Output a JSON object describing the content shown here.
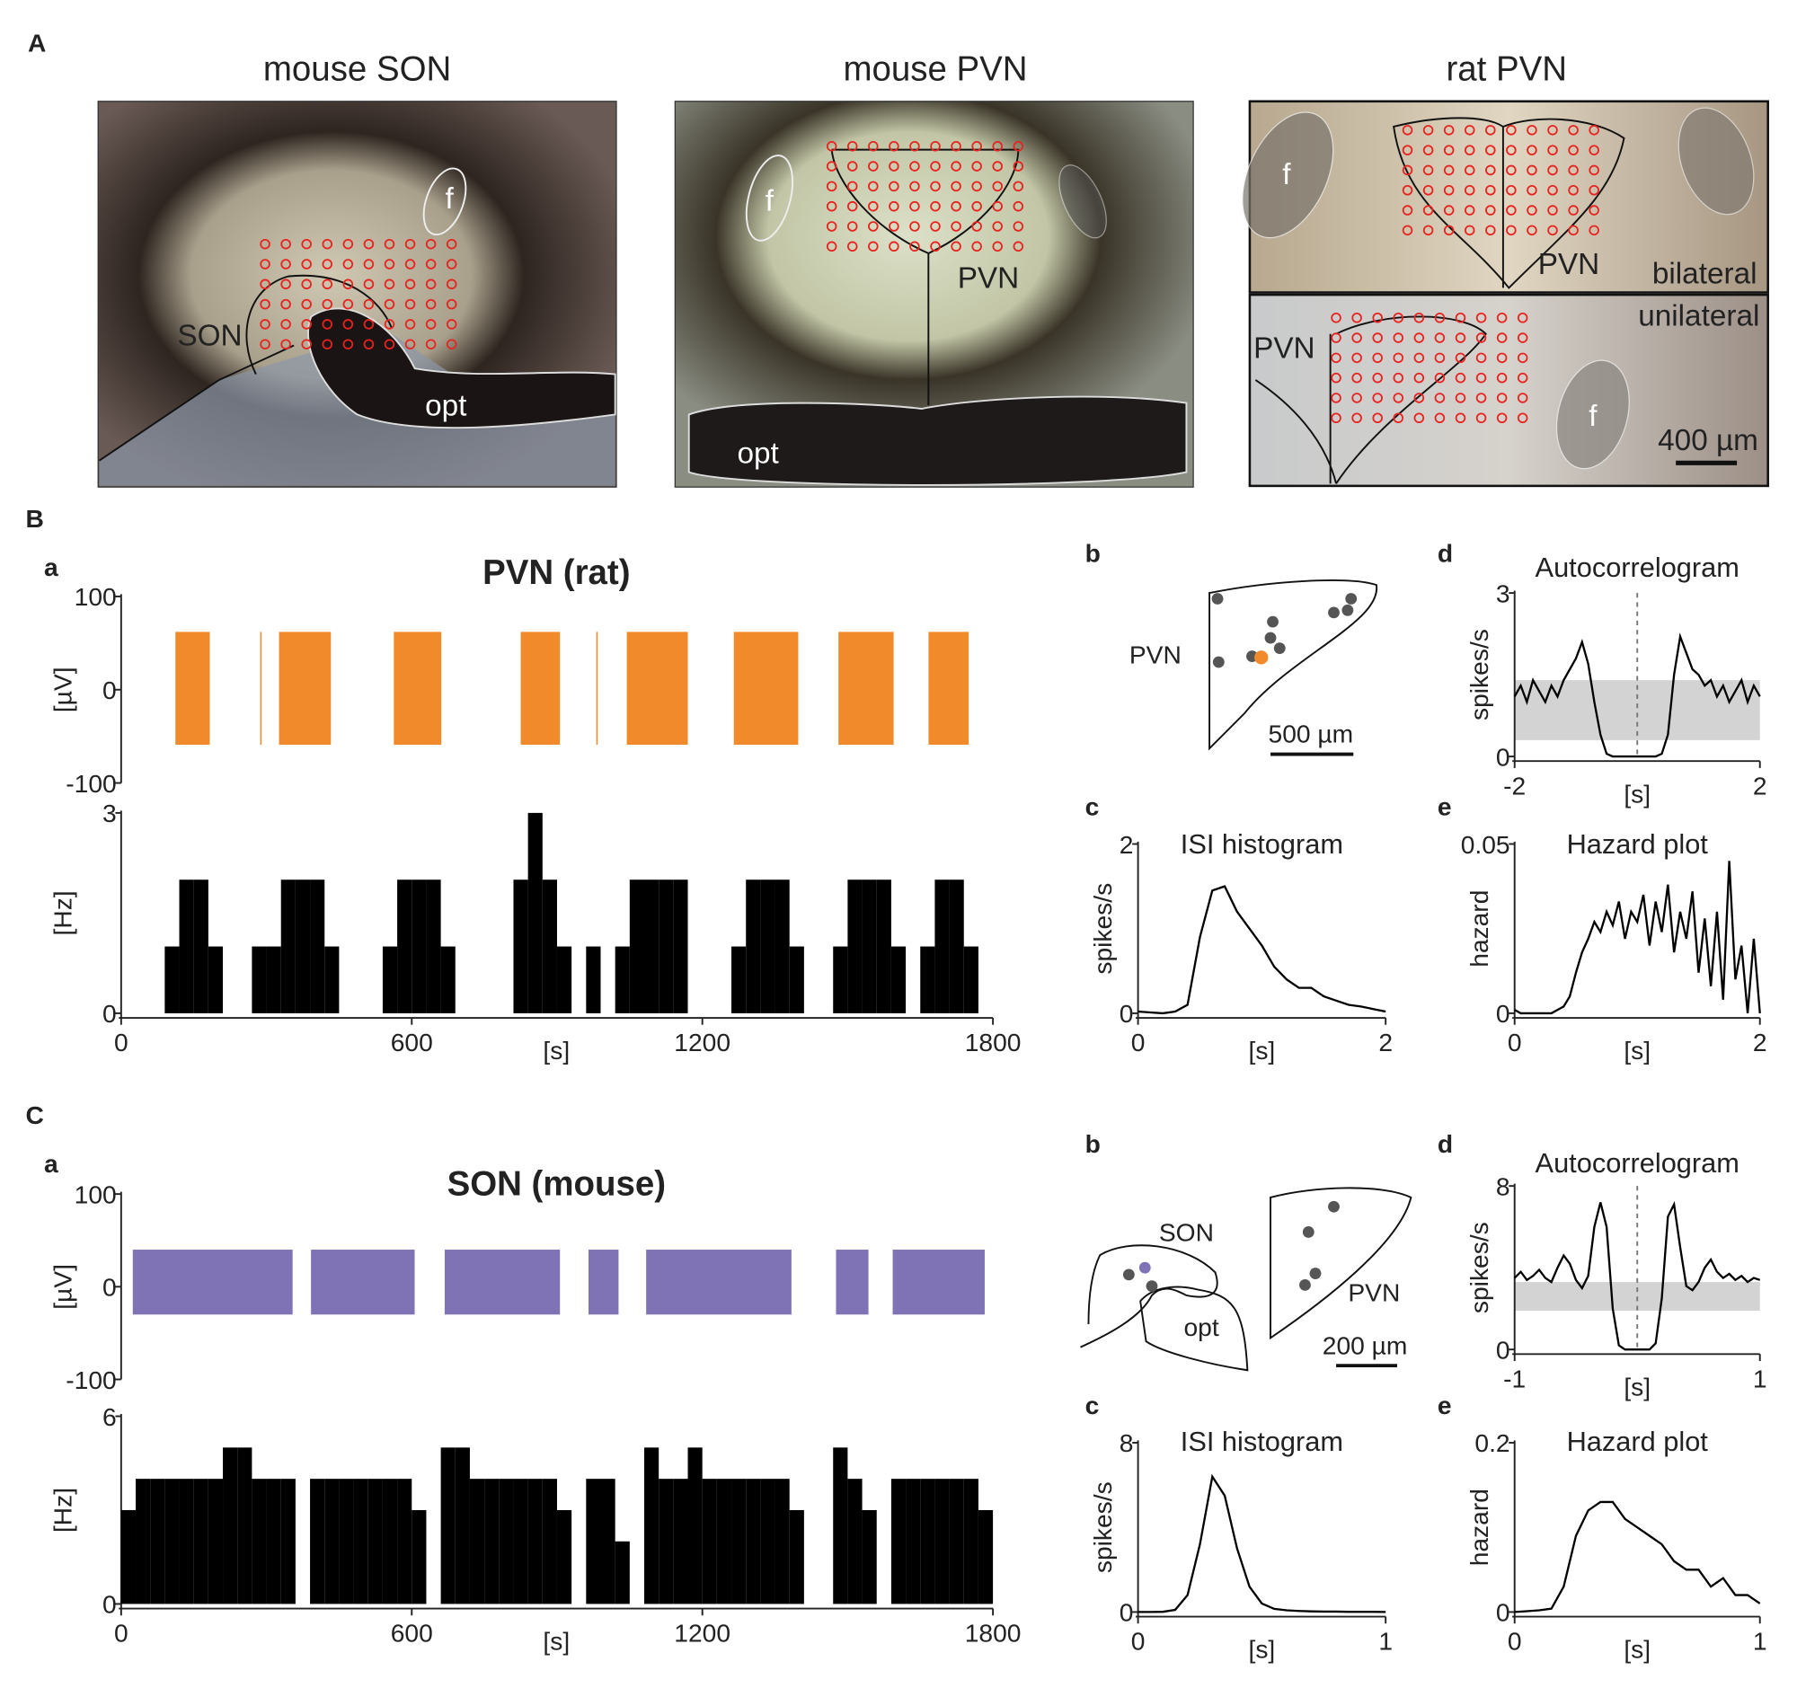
{
  "figure": {
    "panel_labels": [
      "A",
      "B",
      "C"
    ],
    "photos": [
      {
        "title": "mouse SON",
        "labels": [
          "f",
          "SON",
          "opt"
        ]
      },
      {
        "title": "mouse PVN",
        "labels": [
          "f",
          "PVN",
          "opt"
        ]
      },
      {
        "title": "rat PVN",
        "labels": [
          "f",
          "PVN",
          "bilateral",
          "unilateral",
          "PVN",
          "f",
          "400 µm"
        ]
      }
    ],
    "schematics": [
      {
        "panel": "b",
        "labels": [
          "PVN",
          "500 µm"
        ]
      },
      {
        "panel": "b",
        "labels": [
          "SON",
          "opt",
          "PVN",
          "200 µm"
        ]
      }
    ]
  },
  "chart_data": [
    {
      "type": "burst-trace",
      "panel": "a",
      "title": "PVN (rat)",
      "ylabel": "[µV]",
      "ylim": [
        -100,
        100
      ],
      "yticks": [
        -100,
        0,
        100
      ],
      "xlim": [
        0,
        1800
      ],
      "color": "#f08a2b",
      "bursts": [
        [
          112,
          183
        ],
        [
          287,
          289
        ],
        [
          326,
          433
        ],
        [
          563,
          661
        ],
        [
          825,
          906
        ],
        [
          981,
          983
        ],
        [
          1044,
          1170
        ],
        [
          1265,
          1398
        ],
        [
          1481,
          1595
        ],
        [
          1667,
          1750
        ]
      ],
      "amplitude": [
        -59,
        62
      ]
    },
    {
      "type": "histogram",
      "ylabel": "[Hz]",
      "xlabel": "[s]",
      "ylim": [
        0,
        3
      ],
      "yticks": [
        0,
        3
      ],
      "xlim": [
        0,
        1800
      ],
      "xticks": [
        0,
        600,
        1200,
        1800
      ],
      "color": "#000000",
      "bins": [
        0,
        30,
        60,
        90,
        120,
        150,
        180,
        210,
        240,
        270,
        300,
        330,
        360,
        390,
        420,
        450,
        480,
        510,
        540,
        570,
        600,
        630,
        660,
        690,
        720,
        750,
        780,
        810,
        840,
        870,
        900,
        930,
        960,
        990,
        1020,
        1050,
        1080,
        1110,
        1140,
        1170,
        1200,
        1230,
        1260,
        1290,
        1320,
        1350,
        1380,
        1410,
        1440,
        1470,
        1500,
        1530,
        1560,
        1590,
        1620,
        1650,
        1680,
        1710,
        1740,
        1770,
        1800
      ],
      "values": [
        0,
        0,
        0,
        1,
        2,
        2,
        1,
        0,
        0,
        1,
        1,
        2,
        2,
        2,
        1,
        0,
        0,
        0,
        1,
        2,
        2,
        2,
        1,
        0,
        0,
        0,
        0,
        2,
        3,
        2,
        1,
        0,
        1,
        0,
        1,
        2,
        2,
        2,
        2,
        0,
        0,
        0,
        1,
        2,
        2,
        2,
        1,
        0,
        0,
        1,
        2,
        2,
        2,
        1,
        0,
        1,
        2,
        2,
        1,
        0
      ]
    },
    {
      "type": "line",
      "panel": "c",
      "title": "ISI histogram",
      "ylabel": "spikes/s",
      "xlabel": "[s]",
      "xlim": [
        0,
        2
      ],
      "xticks": [
        0,
        2
      ],
      "ylim": [
        0,
        2
      ],
      "yticks": [
        0,
        2
      ],
      "color": "#000000",
      "x": [
        0,
        0.1,
        0.2,
        0.3,
        0.4,
        0.5,
        0.6,
        0.7,
        0.8,
        0.9,
        1.0,
        1.1,
        1.2,
        1.3,
        1.4,
        1.5,
        1.6,
        1.7,
        1.8,
        1.9,
        2.0
      ],
      "values": [
        0.02,
        0.01,
        0,
        0.02,
        0.1,
        0.9,
        1.45,
        1.5,
        1.2,
        1.0,
        0.8,
        0.55,
        0.4,
        0.3,
        0.3,
        0.2,
        0.15,
        0.1,
        0.08,
        0.05,
        0.02
      ]
    },
    {
      "type": "line",
      "panel": "d",
      "title": "Autocorrelogram",
      "ylabel": "spikes/s",
      "xlabel": "[s]",
      "xlim": [
        -2,
        2
      ],
      "xticks": [
        -2,
        2
      ],
      "ylim": [
        0,
        3
      ],
      "yticks": [
        0,
        3
      ],
      "color": "#000000",
      "band": [
        0.3,
        1.4
      ],
      "vline": 0,
      "x": [
        -2.0,
        -1.9,
        -1.8,
        -1.7,
        -1.6,
        -1.5,
        -1.4,
        -1.3,
        -1.2,
        -1.1,
        -1.0,
        -0.9,
        -0.8,
        -0.7,
        -0.6,
        -0.5,
        -0.4,
        -0.3,
        -0.2,
        -0.1,
        0,
        0.1,
        0.2,
        0.3,
        0.4,
        0.5,
        0.6,
        0.7,
        0.8,
        0.9,
        1.0,
        1.1,
        1.2,
        1.3,
        1.4,
        1.5,
        1.6,
        1.7,
        1.8,
        1.9,
        2.0
      ],
      "values": [
        1.1,
        1.3,
        1.0,
        1.4,
        1.2,
        1.0,
        1.3,
        1.1,
        1.4,
        1.6,
        1.8,
        2.1,
        1.7,
        1.0,
        0.4,
        0.05,
        0,
        0,
        0,
        0,
        0,
        0,
        0,
        0,
        0.05,
        0.4,
        1.5,
        2.2,
        1.9,
        1.6,
        1.5,
        1.3,
        1.4,
        1.1,
        1.3,
        1.0,
        1.2,
        1.4,
        1.0,
        1.3,
        1.1
      ]
    },
    {
      "type": "line",
      "panel": "e",
      "title": "Hazard plot",
      "ylabel": "hazard",
      "xlabel": "[s]",
      "xlim": [
        0,
        2
      ],
      "xticks": [
        0,
        2
      ],
      "ylim": [
        0,
        0.05
      ],
      "yticks": [
        0,
        0.05
      ],
      "color": "#000000",
      "x": [
        0,
        0.05,
        0.1,
        0.15,
        0.2,
        0.25,
        0.3,
        0.35,
        0.4,
        0.45,
        0.5,
        0.55,
        0.6,
        0.65,
        0.7,
        0.75,
        0.8,
        0.85,
        0.9,
        0.95,
        1.0,
        1.05,
        1.1,
        1.15,
        1.2,
        1.25,
        1.3,
        1.35,
        1.4,
        1.45,
        1.5,
        1.55,
        1.6,
        1.65,
        1.7,
        1.75,
        1.8,
        1.85,
        1.9,
        1.95,
        2.0
      ],
      "values": [
        0.001,
        0,
        0,
        0,
        0,
        0,
        0,
        0.001,
        0.002,
        0.005,
        0.012,
        0.018,
        0.022,
        0.027,
        0.024,
        0.03,
        0.026,
        0.033,
        0.022,
        0.03,
        0.027,
        0.035,
        0.02,
        0.033,
        0.024,
        0.038,
        0.018,
        0.03,
        0.022,
        0.036,
        0.012,
        0.028,
        0.008,
        0.03,
        0.004,
        0.045,
        0.01,
        0.02,
        0,
        0.022,
        0
      ]
    },
    {
      "type": "burst-trace",
      "panel": "a",
      "title": "SON (mouse)",
      "ylabel": "[µV]",
      "ylim": [
        -100,
        100
      ],
      "yticks": [
        -100,
        0,
        100
      ],
      "xlim": [
        0,
        1800
      ],
      "color": "#7f73b5",
      "bursts": [
        [
          24,
          354
        ],
        [
          392,
          606
        ],
        [
          668,
          906
        ],
        [
          965,
          1027
        ],
        [
          1084,
          1384
        ],
        [
          1476,
          1543
        ],
        [
          1593,
          1783
        ]
      ],
      "amplitude": [
        -30,
        40
      ]
    },
    {
      "type": "histogram",
      "ylabel": "[Hz]",
      "xlabel": "[s]",
      "ylim": [
        0,
        6
      ],
      "yticks": [
        0,
        6
      ],
      "xlim": [
        0,
        1800
      ],
      "xticks": [
        0,
        600,
        1200,
        1800
      ],
      "color": "#000000",
      "bins": [
        0,
        30,
        60,
        90,
        120,
        150,
        180,
        210,
        240,
        270,
        300,
        330,
        360,
        390,
        420,
        450,
        480,
        510,
        540,
        570,
        600,
        630,
        660,
        690,
        720,
        750,
        780,
        810,
        840,
        870,
        900,
        930,
        960,
        990,
        1020,
        1050,
        1080,
        1110,
        1140,
        1170,
        1200,
        1230,
        1260,
        1290,
        1320,
        1350,
        1380,
        1410,
        1440,
        1470,
        1500,
        1530,
        1560,
        1590,
        1620,
        1650,
        1680,
        1710,
        1740,
        1770,
        1800
      ],
      "values": [
        3,
        4,
        4,
        4,
        4,
        4,
        4,
        5,
        5,
        4,
        4,
        4,
        0,
        4,
        4,
        4,
        4,
        4,
        4,
        4,
        3,
        0,
        5,
        5,
        4,
        4,
        4,
        4,
        4,
        4,
        3,
        0,
        4,
        4,
        2,
        0,
        5,
        4,
        4,
        5,
        4,
        4,
        4,
        4,
        4,
        4,
        3,
        0,
        0,
        5,
        4,
        3,
        0,
        4,
        4,
        4,
        4,
        4,
        4,
        3
      ]
    },
    {
      "type": "line",
      "panel": "c",
      "title": "ISI histogram",
      "ylabel": "spikes/s",
      "xlabel": "[s]",
      "xlim": [
        0,
        1
      ],
      "xticks": [
        0,
        1
      ],
      "ylim": [
        0,
        8
      ],
      "yticks": [
        0,
        8
      ],
      "color": "#000000",
      "x": [
        0,
        0.05,
        0.1,
        0.15,
        0.2,
        0.25,
        0.3,
        0.35,
        0.4,
        0.45,
        0.5,
        0.55,
        0.6,
        0.65,
        0.7,
        0.75,
        0.8,
        0.85,
        0.9,
        0.95,
        1.0
      ],
      "values": [
        0,
        0,
        0.01,
        0.1,
        0.8,
        3.2,
        6.4,
        5.5,
        3.0,
        1.2,
        0.4,
        0.15,
        0.08,
        0.05,
        0.03,
        0.02,
        0.02,
        0.01,
        0.01,
        0.01,
        0
      ]
    },
    {
      "type": "line",
      "panel": "d",
      "title": "Autocorrelogram",
      "ylabel": "spikes/s",
      "xlabel": "[s]",
      "xlim": [
        -1,
        1
      ],
      "xticks": [
        -1,
        1
      ],
      "ylim": [
        0,
        8
      ],
      "yticks": [
        0,
        8
      ],
      "color": "#000000",
      "band": [
        1.9,
        3.3
      ],
      "vline": 0,
      "x": [
        -1.0,
        -0.95,
        -0.9,
        -0.85,
        -0.8,
        -0.75,
        -0.7,
        -0.65,
        -0.6,
        -0.55,
        -0.5,
        -0.45,
        -0.4,
        -0.35,
        -0.3,
        -0.25,
        -0.2,
        -0.15,
        -0.1,
        -0.05,
        0,
        0.05,
        0.1,
        0.15,
        0.2,
        0.25,
        0.3,
        0.35,
        0.4,
        0.45,
        0.5,
        0.55,
        0.6,
        0.65,
        0.7,
        0.75,
        0.8,
        0.85,
        0.9,
        0.95,
        1.0
      ],
      "values": [
        3.5,
        3.8,
        3.4,
        3.6,
        3.9,
        3.5,
        3.3,
        4.0,
        4.6,
        4.2,
        3.4,
        3.0,
        3.6,
        6.0,
        7.2,
        6.0,
        2.0,
        0.2,
        0,
        0,
        0,
        0,
        0,
        0.3,
        2.5,
        6.5,
        7.1,
        5.0,
        3.1,
        2.9,
        3.3,
        4.0,
        4.4,
        3.8,
        3.5,
        3.7,
        3.4,
        3.6,
        3.3,
        3.5,
        3.4
      ]
    },
    {
      "type": "line",
      "panel": "e",
      "title": "Hazard plot",
      "ylabel": "hazard",
      "xlabel": "[s]",
      "xlim": [
        0,
        1
      ],
      "xticks": [
        0,
        1
      ],
      "ylim": [
        0,
        0.2
      ],
      "yticks": [
        0,
        0.2
      ],
      "color": "#000000",
      "x": [
        0,
        0.05,
        0.1,
        0.15,
        0.2,
        0.25,
        0.3,
        0.35,
        0.4,
        0.45,
        0.5,
        0.55,
        0.6,
        0.65,
        0.7,
        0.75,
        0.8,
        0.85,
        0.9,
        0.95,
        1.0
      ],
      "values": [
        0,
        0.001,
        0.002,
        0.004,
        0.03,
        0.09,
        0.12,
        0.13,
        0.13,
        0.11,
        0.1,
        0.09,
        0.08,
        0.06,
        0.05,
        0.05,
        0.03,
        0.04,
        0.02,
        0.02,
        0.01
      ]
    }
  ]
}
